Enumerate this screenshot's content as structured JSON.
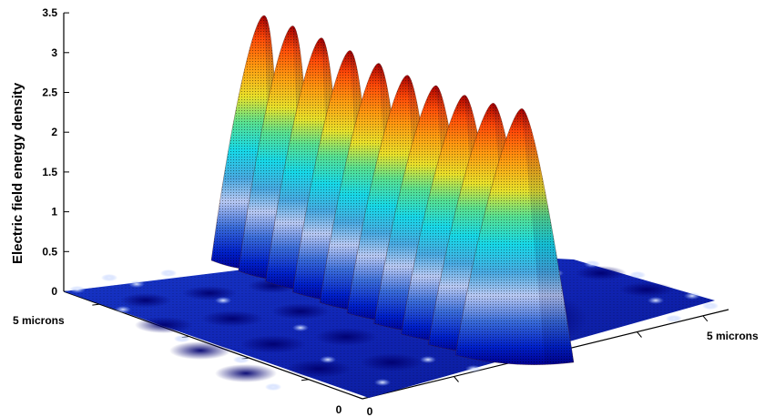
{
  "chart_data": {
    "type": "surface",
    "title": "",
    "zlabel": "Electric field energy density",
    "z_ticks": [
      "0",
      "0.5",
      "1",
      "1.5",
      "2",
      "2.5",
      "3",
      "3.5"
    ],
    "zlim": [
      0,
      3.5
    ],
    "left_axis": {
      "start_label": "0",
      "end_label": "5 microns"
    },
    "right_axis": {
      "start_label": "0",
      "end_label": "5 microns"
    },
    "colormap": "jet",
    "grid": false,
    "series": [
      {
        "peak_index": 1,
        "peak_value": 3.5
      },
      {
        "peak_index": 2,
        "peak_value": 3.37
      },
      {
        "peak_index": 3,
        "peak_value": 3.22
      },
      {
        "peak_index": 4,
        "peak_value": 3.06
      },
      {
        "peak_index": 5,
        "peak_value": 2.9
      },
      {
        "peak_index": 6,
        "peak_value": 2.75
      },
      {
        "peak_index": 7,
        "peak_value": 2.62
      },
      {
        "peak_index": 8,
        "peak_value": 2.5
      },
      {
        "peak_index": 9,
        "peak_value": 2.4
      },
      {
        "peak_index": 10,
        "peak_value": 2.33
      }
    ]
  }
}
